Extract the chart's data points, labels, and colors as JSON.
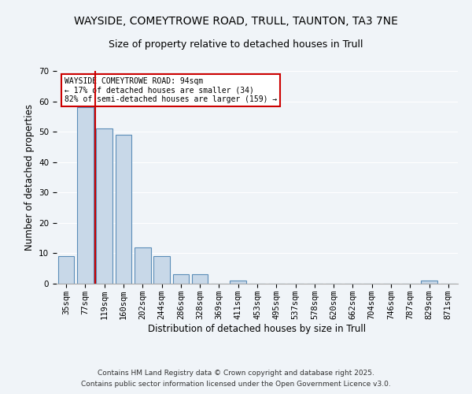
{
  "title": "WAYSIDE, COMEYTROWE ROAD, TRULL, TAUNTON, TA3 7NE",
  "subtitle": "Size of property relative to detached houses in Trull",
  "xlabel": "Distribution of detached houses by size in Trull",
  "ylabel": "Number of detached properties",
  "bar_color": "#c8d8e8",
  "bar_edge_color": "#5b8db8",
  "bar_values": [
    9,
    58,
    51,
    49,
    12,
    9,
    3,
    3,
    0,
    1,
    0,
    0,
    0,
    0,
    0,
    0,
    0,
    0,
    0,
    1,
    0
  ],
  "bin_labels": [
    "35sqm",
    "77sqm",
    "119sqm",
    "160sqm",
    "202sqm",
    "244sqm",
    "286sqm",
    "328sqm",
    "369sqm",
    "411sqm",
    "453sqm",
    "495sqm",
    "537sqm",
    "578sqm",
    "620sqm",
    "662sqm",
    "704sqm",
    "746sqm",
    "787sqm",
    "829sqm",
    "871sqm"
  ],
  "ylim": [
    0,
    70
  ],
  "yticks": [
    0,
    10,
    20,
    30,
    40,
    50,
    60,
    70
  ],
  "property_line_x": 1.5,
  "property_line_color": "#cc0000",
  "annotation_text": "WAYSIDE COMEYTROWE ROAD: 94sqm\n← 17% of detached houses are smaller (34)\n82% of semi-detached houses are larger (159) →",
  "annotation_box_color": "#ffffff",
  "annotation_box_edge_color": "#cc0000",
  "footer_line1": "Contains HM Land Registry data © Crown copyright and database right 2025.",
  "footer_line2": "Contains public sector information licensed under the Open Government Licence v3.0.",
  "background_color": "#f0f4f8",
  "plot_background_color": "#f0f4f8",
  "grid_color": "#ffffff",
  "title_fontsize": 10,
  "subtitle_fontsize": 9,
  "axis_label_fontsize": 8.5,
  "tick_fontsize": 7.5,
  "annotation_fontsize": 7,
  "footer_fontsize": 6.5
}
